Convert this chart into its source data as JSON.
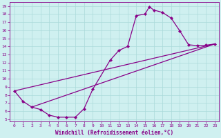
{
  "xlabel": "Windchill (Refroidissement éolien,°C)",
  "bg_color": "#cff0f0",
  "grid_color": "#aadada",
  "line_color": "#880088",
  "xlim": [
    -0.5,
    23.5
  ],
  "ylim": [
    4.7,
    19.5
  ],
  "xticks": [
    0,
    1,
    2,
    3,
    4,
    5,
    6,
    7,
    8,
    9,
    10,
    11,
    12,
    13,
    14,
    15,
    16,
    17,
    18,
    19,
    20,
    21,
    22,
    23
  ],
  "yticks": [
    5,
    6,
    7,
    8,
    9,
    10,
    11,
    12,
    13,
    14,
    15,
    16,
    17,
    18,
    19
  ],
  "curve1_x": [
    0,
    1,
    2,
    3,
    4,
    5,
    6,
    7,
    8,
    9,
    11,
    12,
    13,
    14,
    15,
    15.5,
    16,
    17,
    18,
    19,
    20,
    21,
    22,
    23
  ],
  "curve1_y": [
    8.5,
    7.2,
    6.5,
    6.2,
    5.5,
    5.25,
    5.25,
    5.25,
    6.3,
    8.7,
    12.3,
    13.5,
    14.0,
    17.8,
    18.0,
    18.9,
    18.5,
    18.2,
    17.5,
    15.9,
    14.2,
    14.1,
    14.15,
    14.3
  ],
  "curve2_x": [
    2,
    23
  ],
  "curve2_y": [
    6.5,
    14.3
  ],
  "curve3_x": [
    0,
    23
  ],
  "curve3_y": [
    8.5,
    14.3
  ]
}
